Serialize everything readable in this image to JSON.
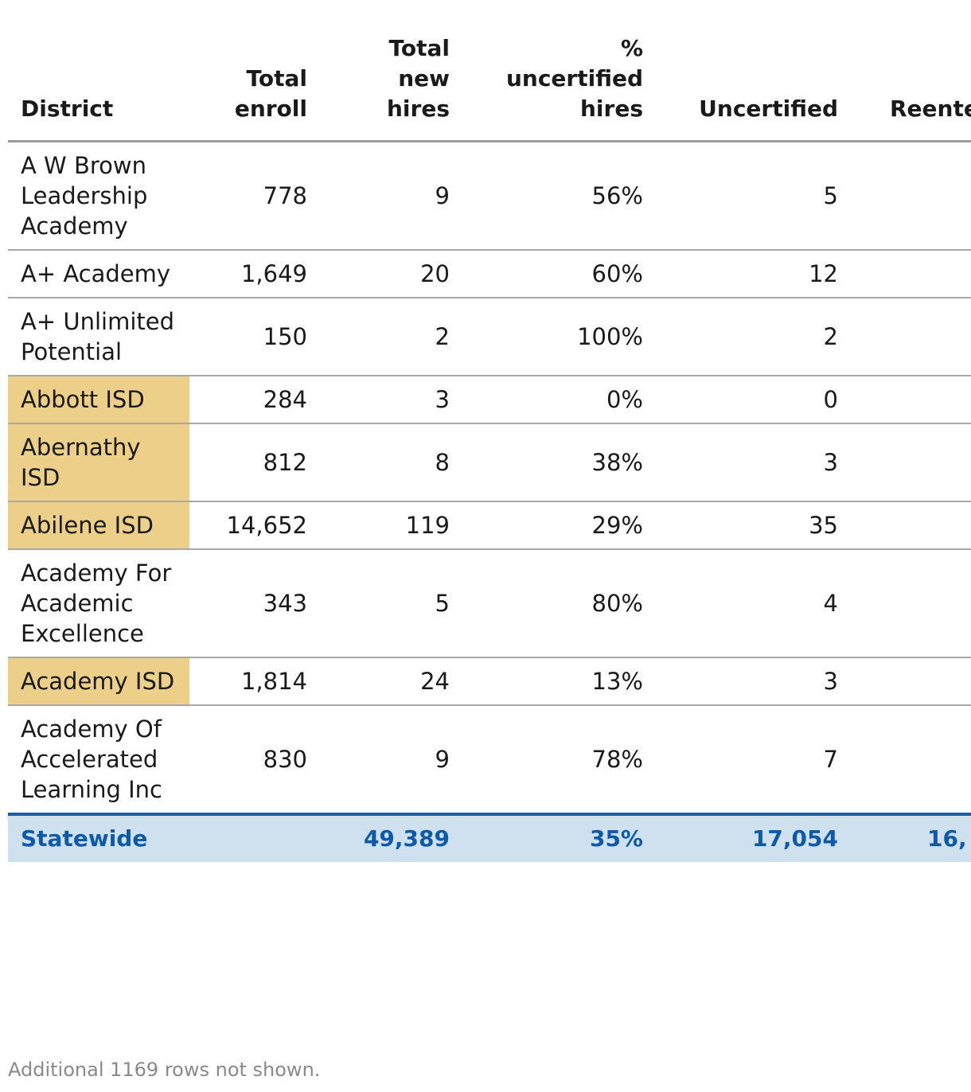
{
  "table": {
    "headers": {
      "district": "District",
      "enroll": [
        "Total",
        "enroll"
      ],
      "hires": [
        "Total",
        "new",
        "hires"
      ],
      "pct": [
        "%",
        "uncertified",
        "hires"
      ],
      "uncertified": "Uncertified",
      "reentered": "Reente"
    },
    "rows": [
      {
        "district": "A W Brown Leadership Academy",
        "highlight": false,
        "enroll": "778",
        "hires": "9",
        "pct": "56%",
        "uncertified": "5"
      },
      {
        "district": "A+ Academy",
        "highlight": false,
        "enroll": "1,649",
        "hires": "20",
        "pct": "60%",
        "uncertified": "12"
      },
      {
        "district": "A+ Unlimited Potential",
        "highlight": false,
        "enroll": "150",
        "hires": "2",
        "pct": "100%",
        "uncertified": "2"
      },
      {
        "district": "Abbott ISD",
        "highlight": true,
        "enroll": "284",
        "hires": "3",
        "pct": "0%",
        "uncertified": "0"
      },
      {
        "district": "Abernathy ISD",
        "highlight": true,
        "enroll": "812",
        "hires": "8",
        "pct": "38%",
        "uncertified": "3"
      },
      {
        "district": "Abilene ISD",
        "highlight": true,
        "enroll": "14,652",
        "hires": "119",
        "pct": "29%",
        "uncertified": "35"
      },
      {
        "district": "Academy For Academic Excellence",
        "highlight": false,
        "enroll": "343",
        "hires": "5",
        "pct": "80%",
        "uncertified": "4"
      },
      {
        "district": "Academy ISD",
        "highlight": true,
        "enroll": "1,814",
        "hires": "24",
        "pct": "13%",
        "uncertified": "3"
      },
      {
        "district": "Academy Of Accelerated Learning Inc",
        "highlight": false,
        "enroll": "830",
        "hires": "9",
        "pct": "78%",
        "uncertified": "7"
      }
    ],
    "footer": {
      "label": "Statewide",
      "enroll": "",
      "hires": "49,389",
      "pct": "35%",
      "uncertified": "17,054",
      "reentered": "16,"
    },
    "highlight_color": "#ecd08a",
    "footer_color": "#0f5aa8"
  },
  "note": "Additional 1169 rows not shown."
}
